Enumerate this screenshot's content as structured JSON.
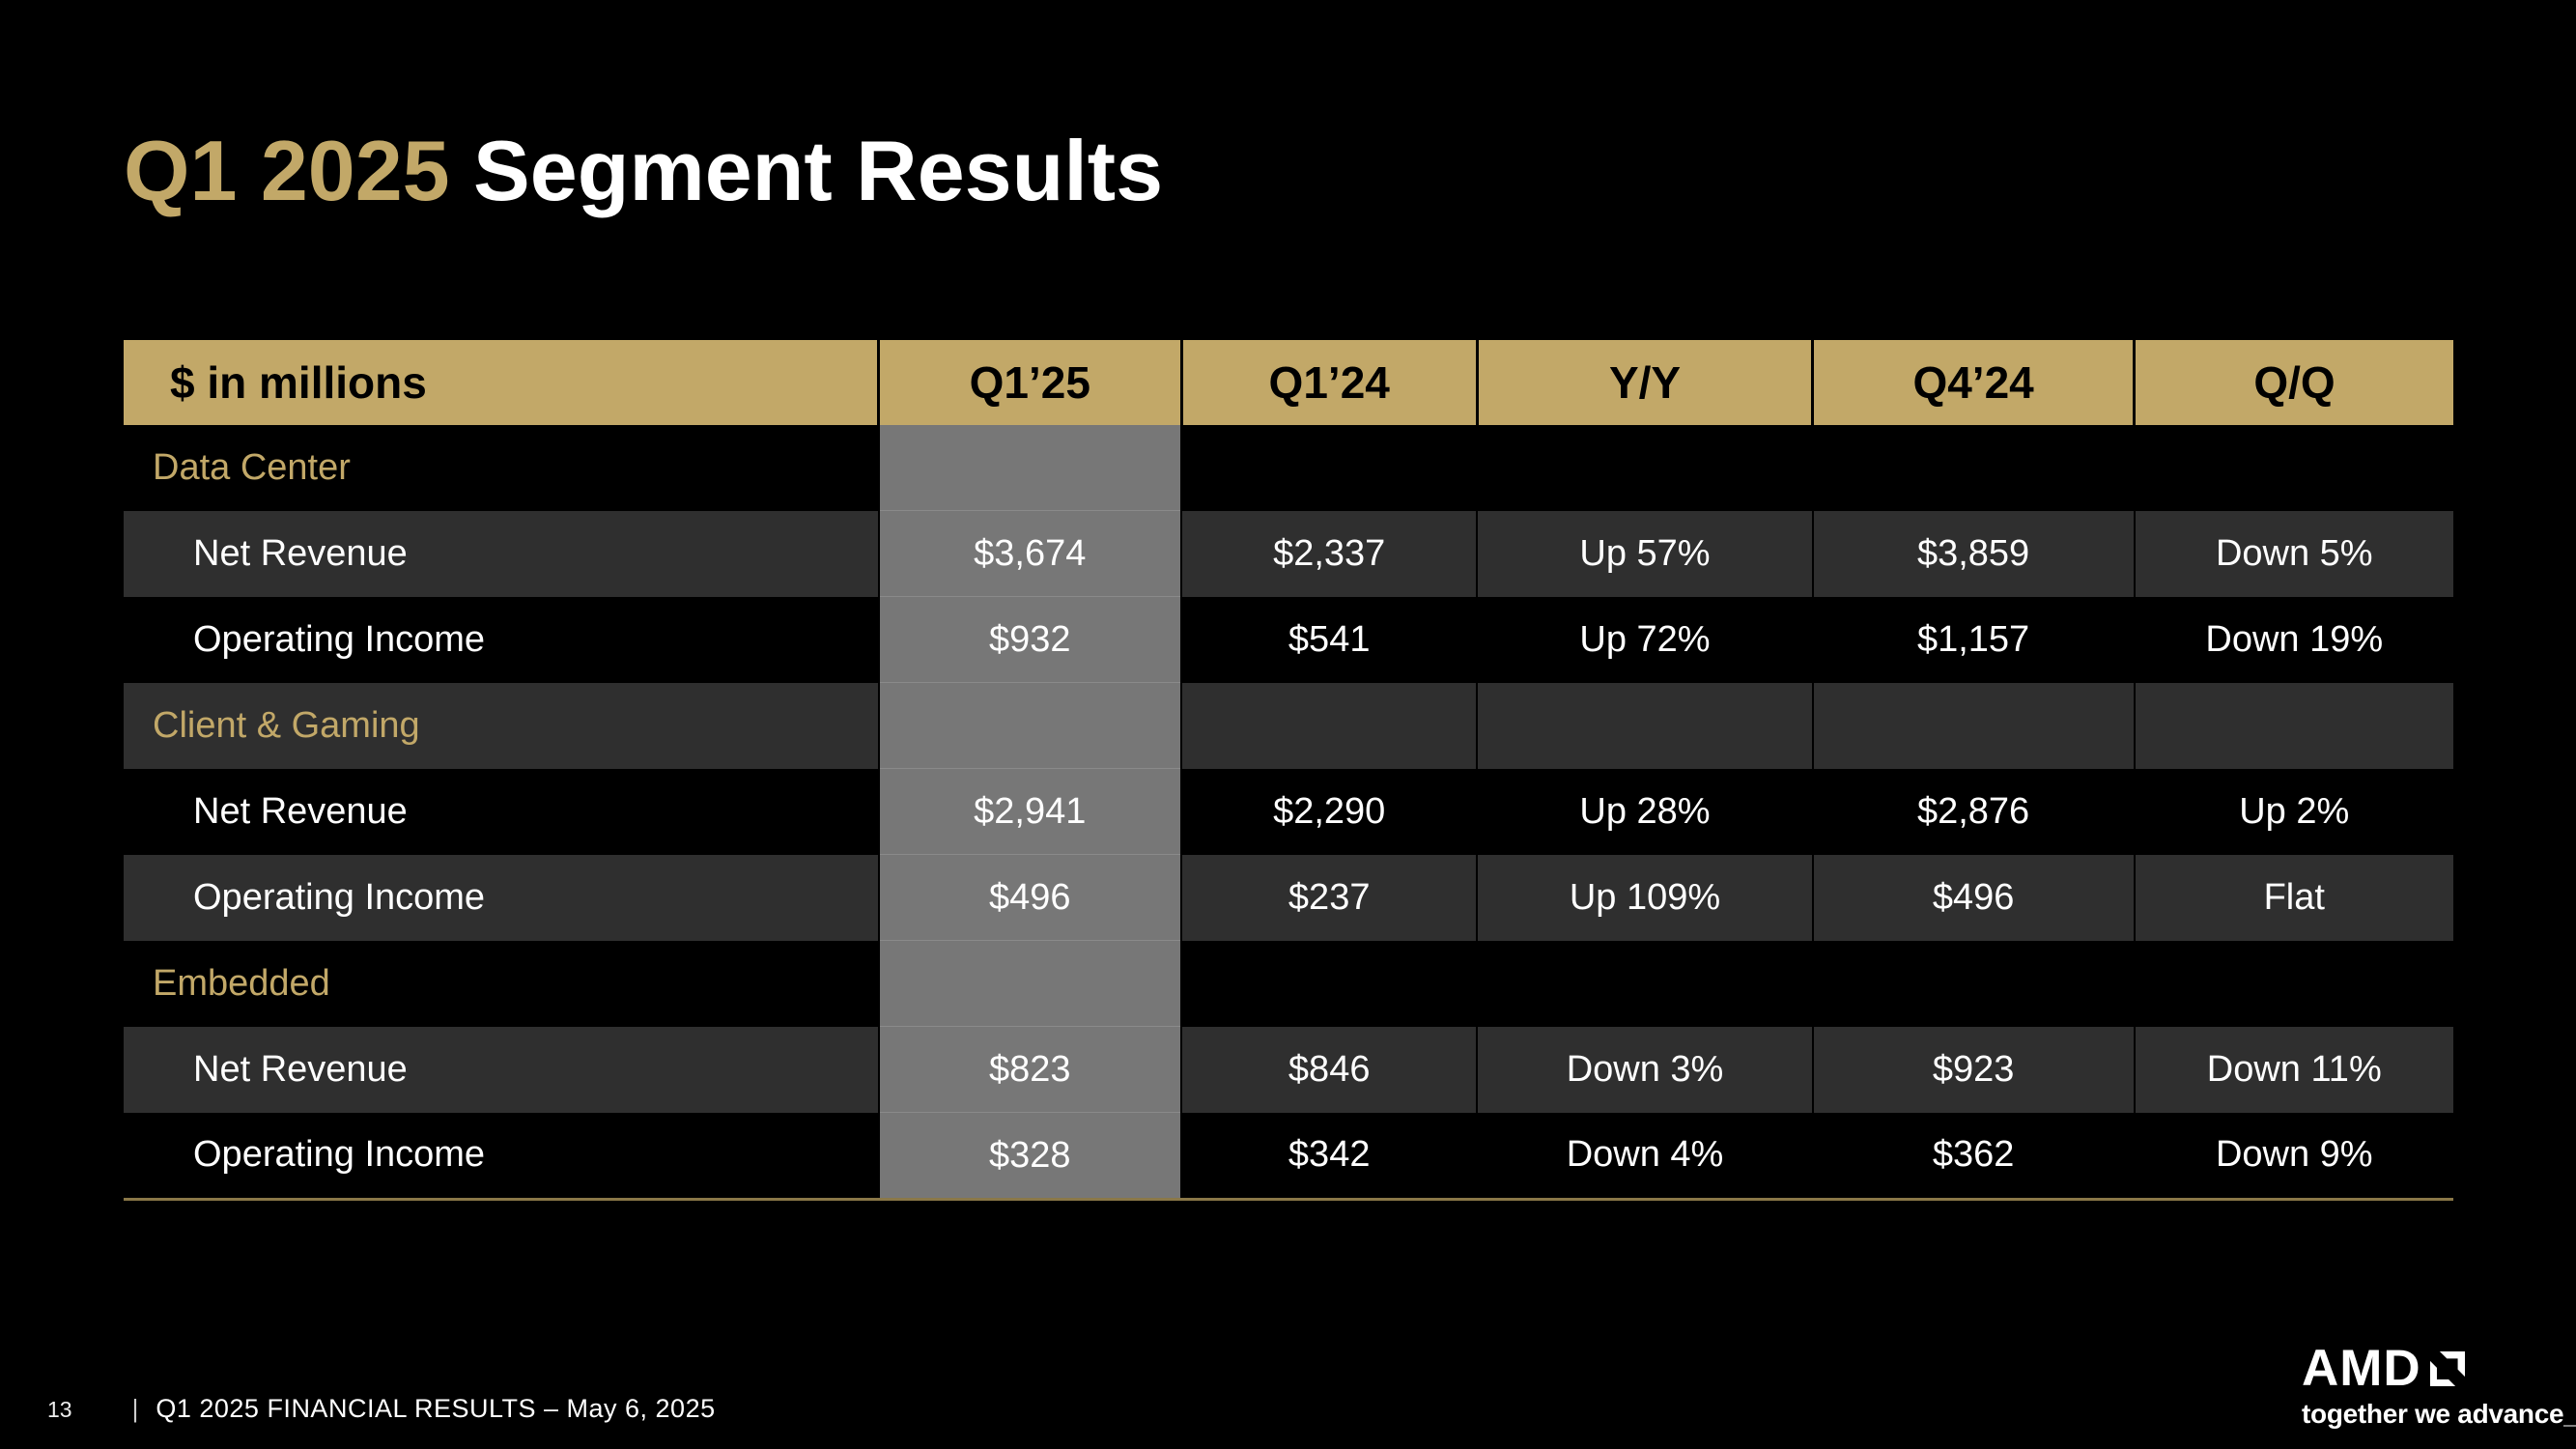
{
  "slide": {
    "title": {
      "highlight": "Q1 2025",
      "rest": " Segment Results"
    },
    "footer": {
      "page_number": "13",
      "separator": "|",
      "text": "Q1 2025 FINANCIAL RESULTS – May 6, 2025"
    },
    "logo": {
      "brand": "AMD",
      "tagline": "together we advance_"
    }
  },
  "colors": {
    "background": "#000000",
    "gold": "#C2A868",
    "dark_row": "#2f2f2f",
    "highlight_column": "#777777",
    "text_white": "#ffffff",
    "header_text": "#000000"
  },
  "table": {
    "columns": [
      "$ in millions",
      "Q1’25",
      "Q1’24",
      "Y/Y",
      "Q4’24",
      "Q/Q"
    ],
    "highlighted_column": "Q1’25",
    "sections": [
      {
        "name": "Data Center",
        "rows": [
          {
            "label": "Net Revenue",
            "values": [
              "$3,674",
              "$2,337",
              "Up 57%",
              "$3,859",
              "Down 5%"
            ]
          },
          {
            "label": "Operating Income",
            "values": [
              "$932",
              "$541",
              "Up 72%",
              "$1,157",
              "Down 19%"
            ]
          }
        ]
      },
      {
        "name": "Client & Gaming",
        "rows": [
          {
            "label": "Net Revenue",
            "values": [
              "$2,941",
              "$2,290",
              "Up 28%",
              "$2,876",
              "Up 2%"
            ]
          },
          {
            "label": "Operating Income",
            "values": [
              "$496",
              "$237",
              "Up 109%",
              "$496",
              "Flat"
            ]
          }
        ]
      },
      {
        "name": "Embedded",
        "rows": [
          {
            "label": "Net Revenue",
            "values": [
              "$823",
              "$846",
              "Down 3%",
              "$923",
              "Down 11%"
            ]
          },
          {
            "label": "Operating Income",
            "values": [
              "$328",
              "$342",
              "Down 4%",
              "$362",
              "Down 9%"
            ]
          }
        ]
      }
    ]
  }
}
